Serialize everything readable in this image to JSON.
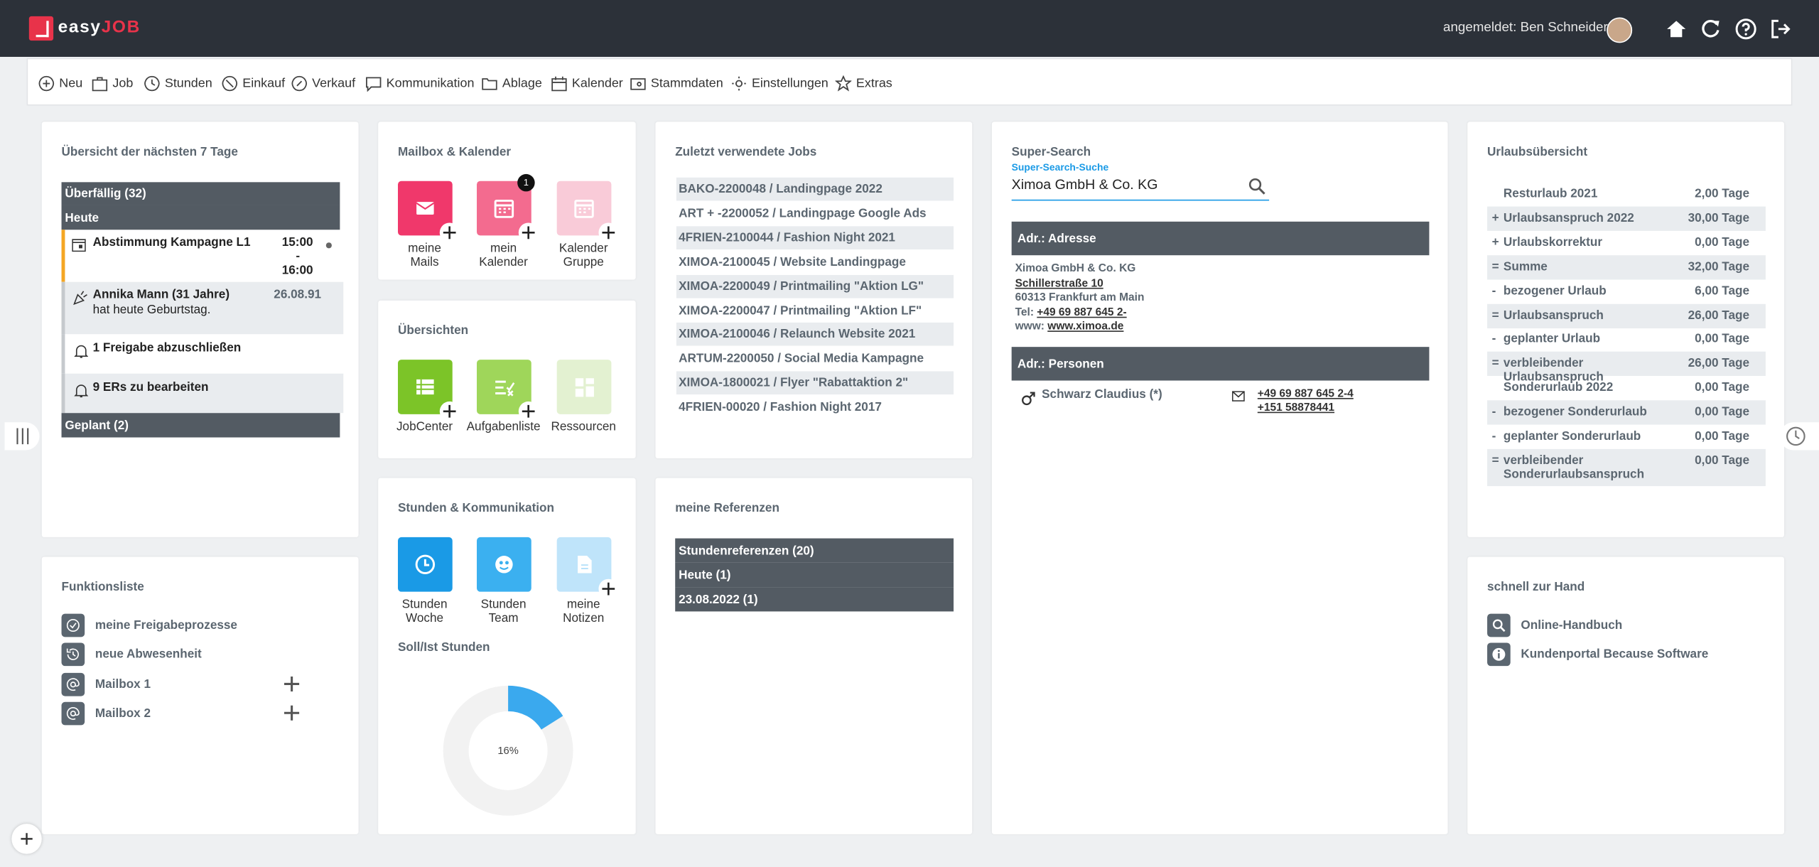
{
  "header": {
    "logo_easy": "easy",
    "logo_job": "JOB",
    "user_label": "angemeldet: Ben Schneider"
  },
  "nav": [
    "Neu",
    "Job",
    "Stunden",
    "Einkauf",
    "Verkauf",
    "Kommunikation",
    "Ablage",
    "Kalender",
    "Stammdaten",
    "Einstellungen",
    "Extras"
  ],
  "overview": {
    "title": "Übersicht der nächsten 7 Tage",
    "overdue": "Überfällig (32)",
    "today": "Heute",
    "appointment": {
      "title": "Abstimmung Kampagne L1",
      "start": "15:00",
      "sep": "-",
      "end": "16:00"
    },
    "birthday": {
      "name": "Annika Mann (31 Jahre)",
      "text": "hat heute Geburtstag.",
      "date": "26.08.91"
    },
    "approvals": "1 Freigabe abzuschließen",
    "ers": "9 ERs zu bearbeiten",
    "planned": "Geplant (2)"
  },
  "mailbox": {
    "title": "Mailbox & Kalender",
    "tiles": [
      "meine\nMails",
      "mein\nKalender",
      "Kalender\nGruppe"
    ],
    "badge": "1"
  },
  "uebersichten": {
    "title": "Übersichten",
    "tiles": [
      "JobCenter",
      "Aufgabenliste",
      "Ressourcen"
    ]
  },
  "stunden": {
    "title": "Stunden & Kommunikation",
    "tiles": [
      "Stunden\nWoche",
      "Stunden\nTeam",
      "meine\nNotizen"
    ],
    "soll_ist": {
      "title": "Soll/Ist Stunden",
      "value": 16,
      "value_label": "16%"
    }
  },
  "jobs": {
    "title": "Zuletzt verwendete Jobs",
    "items": [
      "BAKO-2200048 / Landingpage 2022",
      "ART + -2200052 / Landingpage Google Ads",
      "4FRIEN-2100044 / Fashion Night 2021",
      "XIMOA-2100045 / Website Landingpage",
      "XIMOA-2200049 / Printmailing \"Aktion LG\"",
      "XIMOA-2200047 / Printmailing \"Aktion LF\"",
      "XIMOA-2100046 / Relaunch Website 2021",
      "ARTUM-2200050 / Social Media Kampagne",
      "XIMOA-1800021 / Flyer \"Rabattaktion 2\"",
      "4FRIEN-00020 / Fashion Night 2017"
    ]
  },
  "references": {
    "title": "meine Referenzen",
    "rows": [
      "Stundenreferenzen (20)",
      "Heute (1)",
      "23.08.2022 (1)"
    ]
  },
  "search": {
    "title": "Super-Search",
    "input_label": "Super-Search-Suche",
    "query": "Ximoa GmbH & Co. KG",
    "address_header": "Adr.: Adresse",
    "company": "Ximoa GmbH & Co. KG",
    "street": "Schillerstraße 10",
    "city": "60313 Frankfurt am Main",
    "tel_label": "Tel:",
    "tel": "+49 69 887 645 2-",
    "www_label": "www:",
    "www": "www.ximoa.de",
    "persons_header": "Adr.: Personen",
    "person": "Schwarz Claudius (*)",
    "phones": [
      "+49 69 887 645 2-4",
      "+151 58878441"
    ]
  },
  "urlaub": {
    "title": "Urlaubsübersicht",
    "rows": [
      {
        "sign": "",
        "label": "Resturlaub 2021",
        "value": "2,00 Tage"
      },
      {
        "sign": "+",
        "label": "Urlaubsanspruch 2022",
        "value": "30,00 Tage"
      },
      {
        "sign": "+",
        "label": "Urlaubskorrektur",
        "value": "0,00 Tage"
      },
      {
        "sign": "=",
        "label": "Summe",
        "value": "32,00 Tage"
      },
      {
        "sign": "-",
        "label": "bezogener Urlaub",
        "value": "6,00 Tage"
      },
      {
        "sign": "=",
        "label": "Urlaubsanspruch",
        "value": "26,00 Tage"
      },
      {
        "sign": "-",
        "label": "geplanter Urlaub",
        "value": "0,00 Tage"
      },
      {
        "sign": "=",
        "label": "verbleibender Urlaubsanspruch",
        "value": "26,00 Tage"
      },
      {
        "sign": "",
        "label": "Sonderurlaub 2022",
        "value": "0,00 Tage"
      },
      {
        "sign": "-",
        "label": "bezogener Sonderurlaub",
        "value": "0,00 Tage"
      },
      {
        "sign": "-",
        "label": "geplanter Sonderurlaub",
        "value": "0,00 Tage"
      },
      {
        "sign": "=",
        "label": "verbleibender Sonderurlaubsanspruch",
        "value": "0,00 Tage"
      }
    ]
  },
  "funktionsliste": {
    "title": "Funktionsliste",
    "items": [
      "meine Freigabeprozesse",
      "neue Abwesenheit",
      "Mailbox 1",
      "Mailbox 2"
    ]
  },
  "schnell": {
    "title": "schnell zur Hand",
    "items": [
      "Online-Handbuch",
      "Kundenportal Because Software"
    ]
  }
}
